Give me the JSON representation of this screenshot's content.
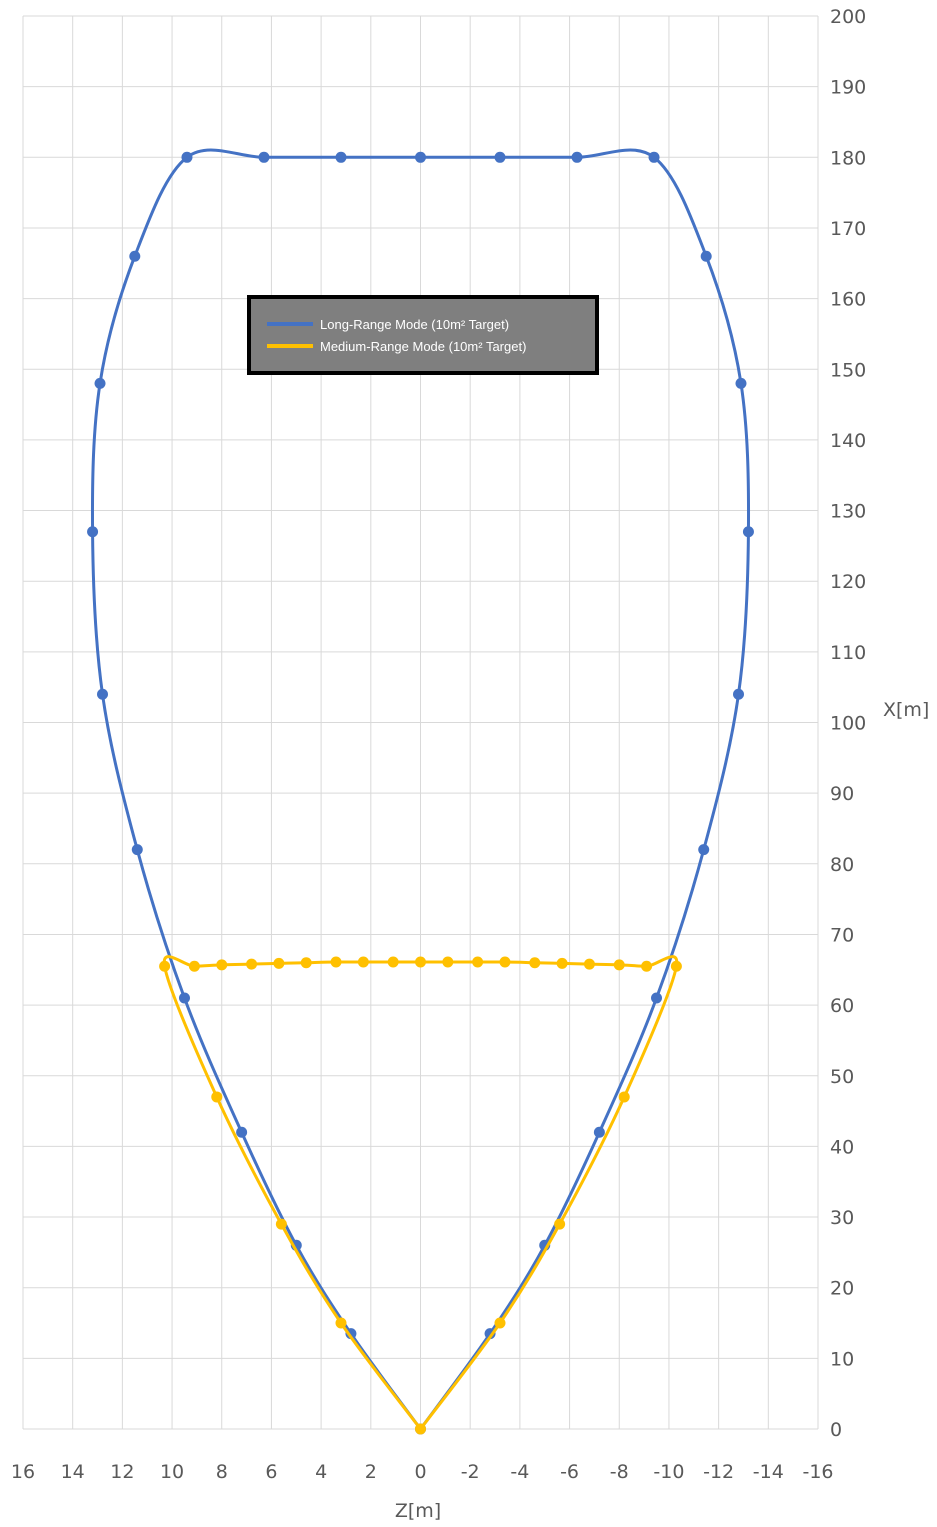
{
  "chart_data": {
    "type": "scatter",
    "title": "",
    "xlabel": "Z[m]",
    "ylabel": "X[m]",
    "xlim": [
      16,
      -16
    ],
    "ylim": [
      0,
      200
    ],
    "x_ticks": [
      "16",
      "14",
      "12",
      "10",
      "8",
      "6",
      "4",
      "2",
      "0",
      "-2",
      "-4",
      "-6",
      "-8",
      "-10",
      "-12",
      "-14",
      "-16"
    ],
    "y_ticks": [
      "0",
      "10",
      "20",
      "30",
      "40",
      "50",
      "60",
      "70",
      "80",
      "90",
      "100",
      "110",
      "120",
      "130",
      "140",
      "150",
      "160",
      "170",
      "180",
      "190",
      "200"
    ],
    "grid": true,
    "legend_position": "upper-center",
    "series": [
      {
        "name": "Long-Range Mode (10m² Target)",
        "color": "#4472C4",
        "points": [
          [
            0,
            0
          ],
          [
            2.8,
            13.5
          ],
          [
            5.0,
            26
          ],
          [
            7.2,
            42
          ],
          [
            9.5,
            61
          ],
          [
            11.4,
            82
          ],
          [
            12.8,
            104
          ],
          [
            13.2,
            127
          ],
          [
            12.9,
            148
          ],
          [
            11.5,
            166
          ],
          [
            9.4,
            180
          ],
          [
            6.3,
            180
          ],
          [
            3.2,
            180
          ],
          [
            0,
            180
          ],
          [
            -3.2,
            180
          ],
          [
            -6.3,
            180
          ],
          [
            -9.4,
            180
          ],
          [
            -11.5,
            166
          ],
          [
            -12.9,
            148
          ],
          [
            -13.2,
            127
          ],
          [
            -12.8,
            104
          ],
          [
            -11.4,
            82
          ],
          [
            -9.5,
            61
          ],
          [
            -7.2,
            42
          ],
          [
            -5.0,
            26
          ],
          [
            -2.8,
            13.5
          ],
          [
            0,
            0
          ]
        ]
      },
      {
        "name": "Medium-Range Mode (10m² Target)",
        "color": "#FFC000",
        "points": [
          [
            0,
            0
          ],
          [
            3.2,
            15
          ],
          [
            5.6,
            29
          ],
          [
            8.2,
            47
          ],
          [
            10.3,
            65.5
          ],
          [
            9.1,
            65.5
          ],
          [
            8.0,
            65.7
          ],
          [
            6.8,
            65.8
          ],
          [
            5.7,
            65.9
          ],
          [
            4.6,
            66.0
          ],
          [
            3.4,
            66.1
          ],
          [
            2.3,
            66.1
          ],
          [
            1.1,
            66.1
          ],
          [
            0,
            66.1
          ],
          [
            -1.1,
            66.1
          ],
          [
            -2.3,
            66.1
          ],
          [
            -3.4,
            66.1
          ],
          [
            -4.6,
            66.0
          ],
          [
            -5.7,
            65.9
          ],
          [
            -6.8,
            65.8
          ],
          [
            -8.0,
            65.7
          ],
          [
            -9.1,
            65.5
          ],
          [
            -10.3,
            65.5
          ],
          [
            -8.2,
            47
          ],
          [
            -5.6,
            29
          ],
          [
            -3.2,
            15
          ],
          [
            0,
            0
          ]
        ]
      }
    ]
  }
}
